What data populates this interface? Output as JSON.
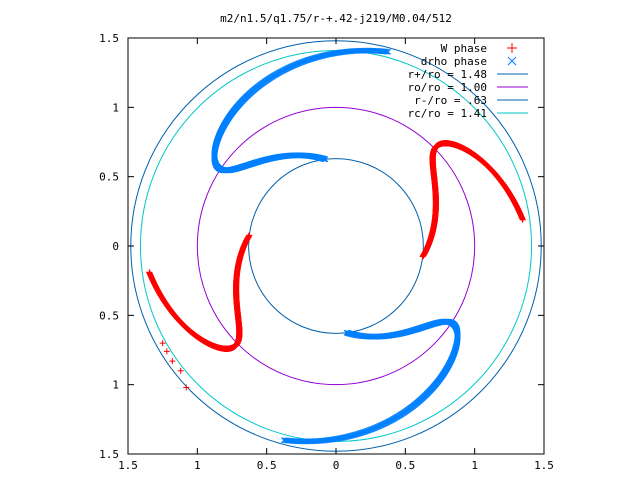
{
  "chart_data": {
    "type": "scatter",
    "title": "m2/n1.5/q1.75/r-+.42-j219/M0.04/512",
    "xlim": [
      -1.5,
      1.5
    ],
    "ylim": [
      -1.5,
      1.5
    ],
    "xticks": [
      -1.5,
      -1,
      -0.5,
      0,
      0.5,
      1,
      1.5
    ],
    "yticks": [
      -1.5,
      -1,
      -0.5,
      0,
      0.5,
      1,
      1.5
    ],
    "xtick_labels": [
      "1.5",
      "1",
      "0.5",
      "0",
      "0.5",
      "1",
      "1.5"
    ],
    "ytick_labels": [
      "1.5",
      "1",
      "0.5",
      "0",
      "0.5",
      "1",
      "1.5"
    ],
    "legend_position": "top-right",
    "series": [
      {
        "name": "W phase",
        "marker": "plus",
        "color": "#ff0000",
        "branches": [
          {
            "r_start": 0.63,
            "r_end": 1.36,
            "theta_inner_deg": -7,
            "theta_outer_deg": 8,
            "max_bend_deg": 44
          },
          {
            "r_start": 0.63,
            "r_end": 1.36,
            "theta_inner_deg": 173,
            "theta_outer_deg": 188,
            "max_bend_deg": 44
          }
        ],
        "tail_points": [
          {
            "x": -1.12,
            "y": -0.9
          },
          {
            "x": -1.18,
            "y": -0.83
          },
          {
            "x": -1.22,
            "y": -0.76
          },
          {
            "x": -1.25,
            "y": -0.7
          },
          {
            "x": -1.08,
            "y": -1.02
          }
        ]
      },
      {
        "name": "drho phase",
        "marker": "cross",
        "color": "#0080ff",
        "branches": [
          {
            "r_start": 0.63,
            "r_end": 1.45,
            "theta_inner_deg": 97,
            "theta_outer_deg": 75,
            "max_bend_deg": 60
          },
          {
            "r_start": 0.63,
            "r_end": 1.45,
            "theta_inner_deg": 277,
            "theta_outer_deg": 255,
            "max_bend_deg": 60
          }
        ]
      }
    ],
    "circles": [
      {
        "name": "r+/ro = 1.48",
        "r": 1.48,
        "color": "#0060ad"
      },
      {
        "name": "ro/ro = 1.00",
        "r": 1.0,
        "color": "#9400d3"
      },
      {
        "name": "r-/ro = .63",
        "r": 0.63,
        "color": "#0060ad"
      },
      {
        "name": "rc/ro = 1.41",
        "r": 1.41,
        "color": "#00c8c8"
      }
    ]
  }
}
